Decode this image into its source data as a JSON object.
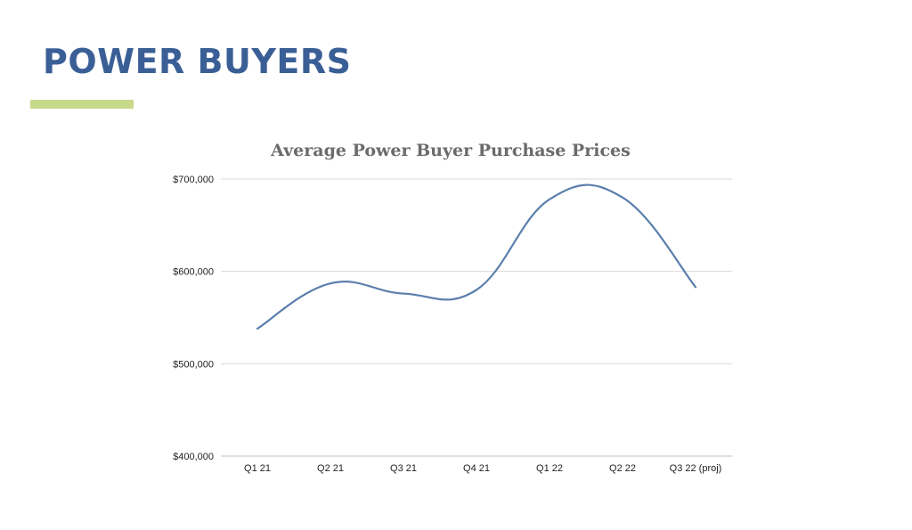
{
  "slide": {
    "title": "POWER BUYERS",
    "title_color": "#3a5f96",
    "accent_color": "#c8d98a"
  },
  "chart_data": {
    "type": "line",
    "title": "Average Power Buyer Purchase Prices",
    "xlabel": "",
    "ylabel": "",
    "categories": [
      "Q1 21",
      "Q2 21",
      "Q3 21",
      "Q4 21",
      "Q1 22",
      "Q2 22",
      "Q3 22 (proj)"
    ],
    "series": [
      {
        "values": [
          538000,
          587000,
          576000,
          580000,
          678000,
          680000,
          583000
        ],
        "color": "#5b7fad",
        "smooth": true
      }
    ],
    "ylim": [
      400000,
      700000
    ],
    "yticks": [
      400000,
      500000,
      600000,
      700000
    ],
    "ytick_labels": [
      "$400,000",
      "$500,000",
      "$600,000",
      "$700,000"
    ],
    "grid": true,
    "legend": "none"
  }
}
